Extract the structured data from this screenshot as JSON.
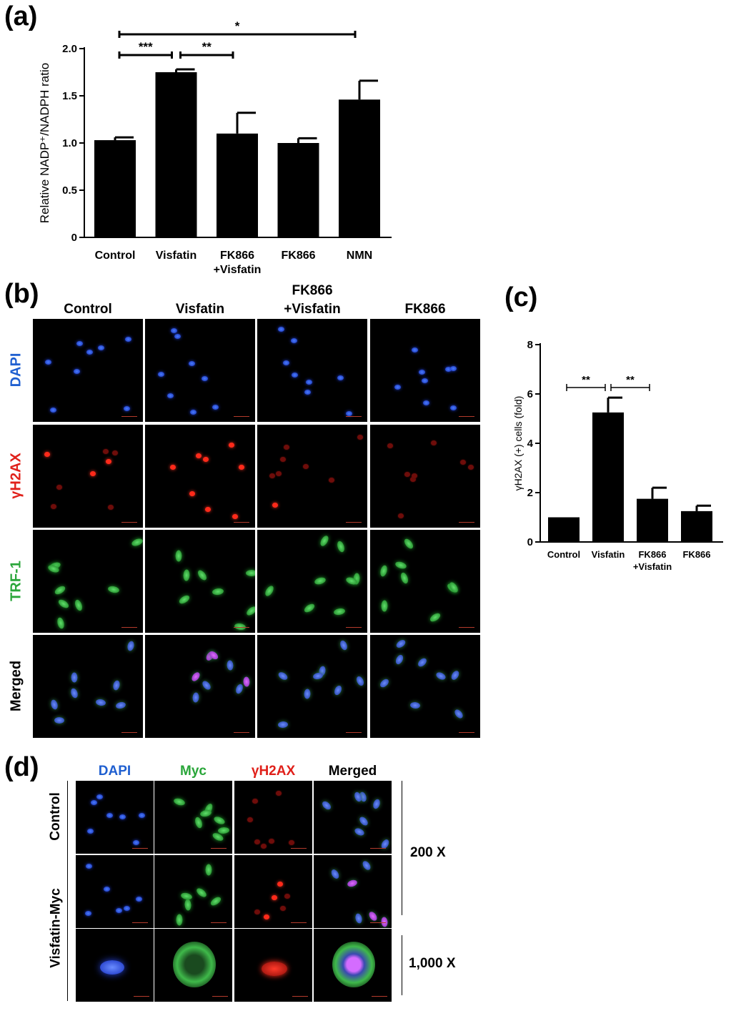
{
  "panels": {
    "a": {
      "label": "(a)"
    },
    "b": {
      "label": "(b)"
    },
    "c": {
      "label": "(c)"
    },
    "d": {
      "label": "(d)"
    }
  },
  "chart_data": [
    {
      "type": "bar",
      "panel": "a",
      "categories": [
        "Control",
        "Visfatin",
        "FK866\n+Visfatin",
        "FK866",
        "NMN"
      ],
      "category_lines": [
        [
          "Control"
        ],
        [
          "Visfatin"
        ],
        [
          "FK866",
          "+Visfatin"
        ],
        [
          "FK866"
        ],
        [
          "NMN"
        ]
      ],
      "values": [
        1.03,
        1.75,
        1.1,
        1.0,
        1.46
      ],
      "errors": [
        0.03,
        0.03,
        0.22,
        0.05,
        0.2
      ],
      "ylabel": "Relative NADP⁺/NADPH  ratio",
      "ylim": [
        0,
        2.0
      ],
      "yticks": [
        0,
        0.5,
        1.0,
        1.5,
        2.0
      ],
      "ytick_labels": [
        "0",
        "0.5",
        "1.0",
        "1.5",
        "2.0"
      ],
      "significance": [
        {
          "from": 0,
          "to": 1,
          "label": "***"
        },
        {
          "from": 1,
          "to": 2,
          "label": "**"
        },
        {
          "from": 0,
          "to": 4,
          "label": "*"
        }
      ]
    },
    {
      "type": "bar",
      "panel": "c",
      "categories": [
        "Control",
        "Visfatin",
        "FK866\n+Visfatin",
        "FK866"
      ],
      "category_lines": [
        [
          "Control"
        ],
        [
          "Visfatin"
        ],
        [
          "FK866",
          "+Visfatin"
        ],
        [
          "FK866"
        ]
      ],
      "values": [
        1.0,
        5.25,
        1.75,
        1.25
      ],
      "errors": [
        0,
        0.6,
        0.45,
        0.22
      ],
      "ylabel": "γH2AX (+) cells (fold)",
      "ylim": [
        0,
        8
      ],
      "yticks": [
        0,
        2,
        4,
        6,
        8
      ],
      "ytick_labels": [
        "0",
        "2",
        "4",
        "6",
        "8"
      ],
      "significance": [
        {
          "from": 0,
          "to": 1,
          "label": "**"
        },
        {
          "from": 1,
          "to": 2,
          "label": "**"
        }
      ]
    }
  ],
  "panel_b": {
    "columns": [
      "Control",
      "Visfatin",
      "FK866\n+Visfatin",
      "FK866"
    ],
    "column_lines": [
      [
        "Control"
      ],
      [
        "Visfatin"
      ],
      [
        "FK866",
        "+Visfatin"
      ],
      [
        "FK866"
      ]
    ],
    "rows": [
      {
        "label": "DAPI",
        "color": "#1f5fd0"
      },
      {
        "label": "γH2AX",
        "color": "#e0201a"
      },
      {
        "label": "TRF-1",
        "color": "#2aa63a"
      },
      {
        "label": "Merged",
        "color": "#000000"
      }
    ]
  },
  "panel_d": {
    "columns": [
      {
        "label": "DAPI",
        "color": "#1f5fd0"
      },
      {
        "label": "Myc",
        "color": "#2aa63a"
      },
      {
        "label": "γH2AX",
        "color": "#e0201a"
      },
      {
        "label": "Merged",
        "color": "#000000"
      }
    ],
    "rows": {
      "control": "Control",
      "visfatin_myc": "Visfatin-Myc"
    },
    "magnifications": {
      "low": "200 X",
      "high": "1,000 X"
    }
  }
}
